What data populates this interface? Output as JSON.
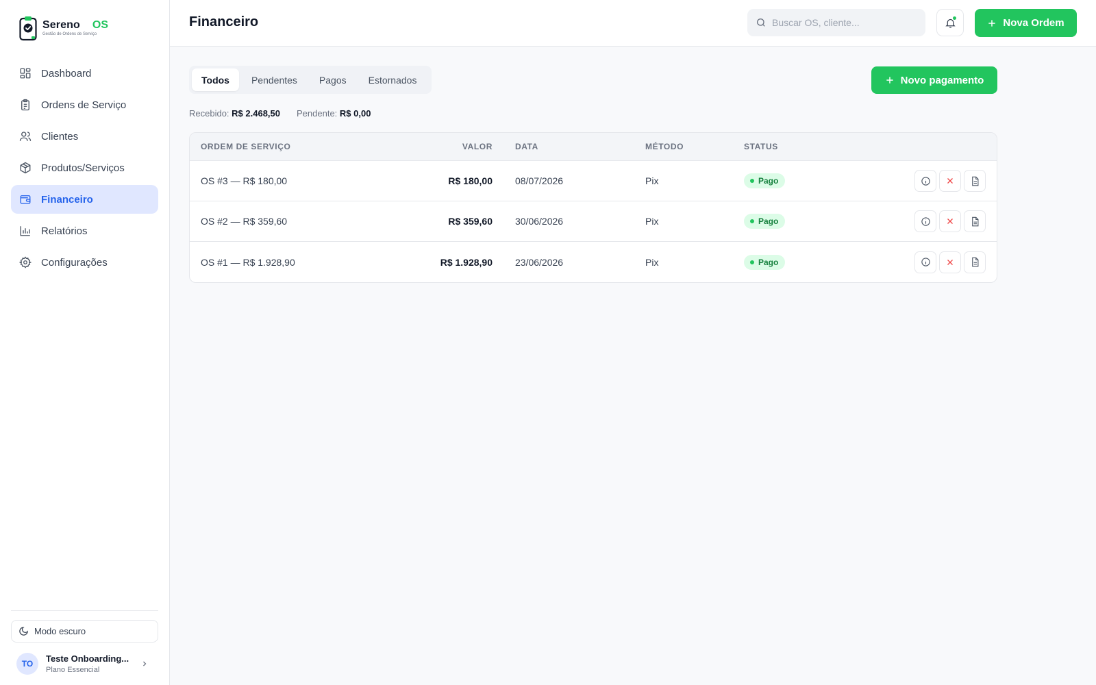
{
  "brand": {
    "name": "Sereno",
    "suffix": "OS",
    "tagline": "Gestão de Ordens de Serviço",
    "accent": "#22c55e",
    "primary": "#2563eb"
  },
  "sidebar": {
    "items": [
      {
        "label": "Dashboard",
        "icon": "dashboard-icon",
        "active": false
      },
      {
        "label": "Ordens de Serviço",
        "icon": "clipboard-icon",
        "active": false
      },
      {
        "label": "Clientes",
        "icon": "users-icon",
        "active": false
      },
      {
        "label": "Produtos/Serviços",
        "icon": "package-icon",
        "active": false
      },
      {
        "label": "Financeiro",
        "icon": "wallet-icon",
        "active": true
      },
      {
        "label": "Relatórios",
        "icon": "bar-chart-icon",
        "active": false
      },
      {
        "label": "Configurações",
        "icon": "gear-icon",
        "active": false
      }
    ],
    "dark_mode_label": "Modo escuro",
    "user": {
      "initials": "TO",
      "name": "Teste Onboarding...",
      "plan": "Plano Essencial"
    }
  },
  "header": {
    "title": "Financeiro",
    "search_placeholder": "Buscar OS, cliente...",
    "new_order_label": "Nova Ordem"
  },
  "tabs": [
    {
      "label": "Todos",
      "active": true
    },
    {
      "label": "Pendentes",
      "active": false
    },
    {
      "label": "Pagos",
      "active": false
    },
    {
      "label": "Estornados",
      "active": false
    }
  ],
  "new_payment_label": "Novo pagamento",
  "summary": {
    "received_label": "Recebido:",
    "received_value": "R$ 2.468,50",
    "pending_label": "Pendente:",
    "pending_value": "R$ 0,00"
  },
  "table": {
    "headers": {
      "os": "ORDEM DE SERVIÇO",
      "valor": "VALOR",
      "data": "DATA",
      "metodo": "MÉTODO",
      "status": "STATUS"
    },
    "rows": [
      {
        "os": "OS #3 — R$ 180,00",
        "valor": "R$ 180,00",
        "data": "08/07/2026",
        "metodo": "Pix",
        "status": "Pago"
      },
      {
        "os": "OS #2 — R$ 359,60",
        "valor": "R$ 359,60",
        "data": "30/06/2026",
        "metodo": "Pix",
        "status": "Pago"
      },
      {
        "os": "OS #1 — R$ 1.928,90",
        "valor": "R$ 1.928,90",
        "data": "23/06/2026",
        "metodo": "Pix",
        "status": "Pago"
      }
    ]
  }
}
